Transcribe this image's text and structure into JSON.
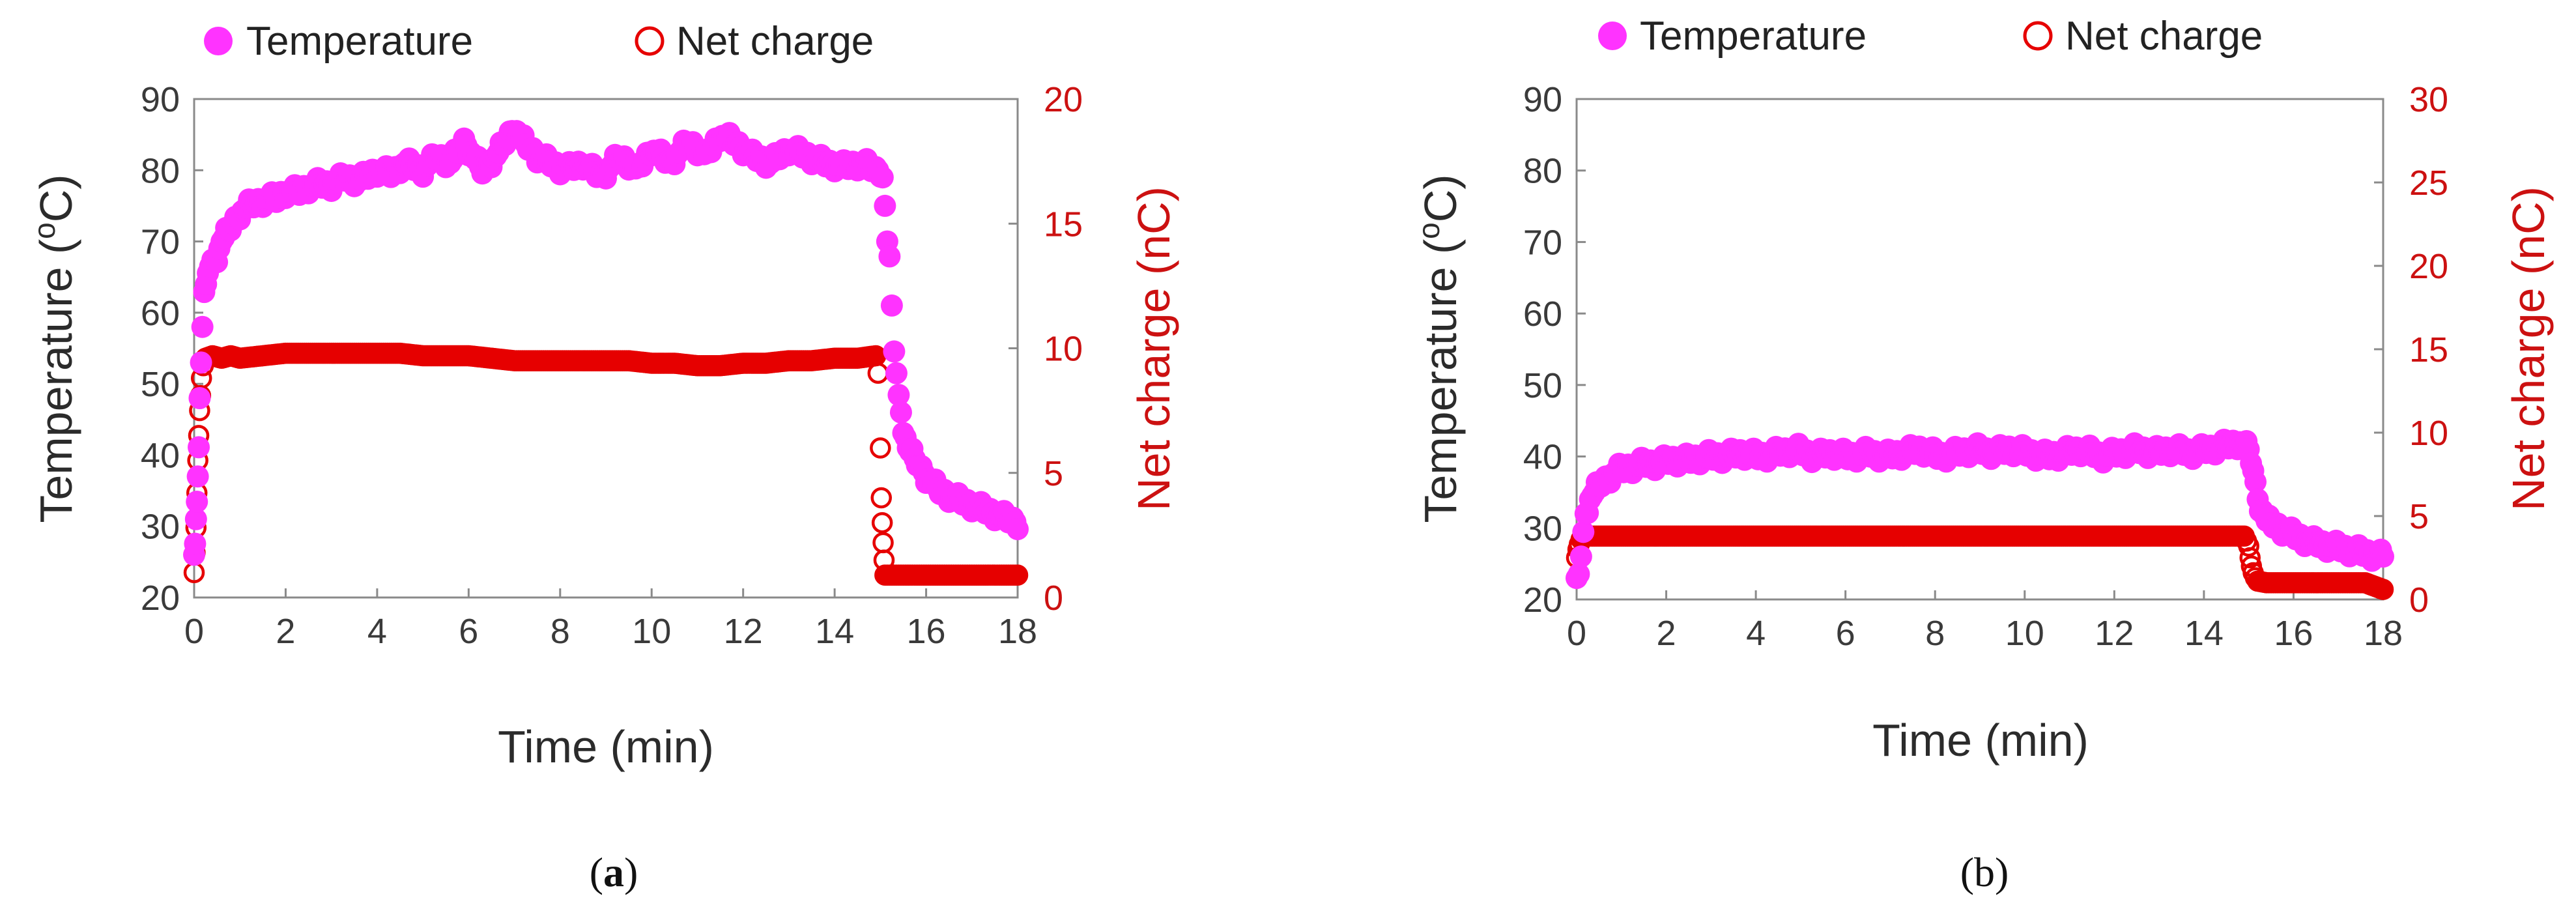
{
  "colors": {
    "temperature": "#ff33ff",
    "charge": "#e60000",
    "axis": "#8a8a8a"
  },
  "chart_data": [
    {
      "panel": "(a)",
      "panel_open": "(",
      "panel_letter": "a",
      "panel_close": ")",
      "type": "scatter",
      "xlabel": "Time (min)",
      "ylabel_left": "Temperature (",
      "ylabel_sup": "o",
      "ylabel_left_end": "C)",
      "ylabel_right": "Net charge (nC)",
      "legend": [
        "Temperature",
        "Net charge"
      ],
      "xlim": [
        0,
        18
      ],
      "ylim_left": [
        20,
        90
      ],
      "ylim_right": [
        0,
        20
      ],
      "xticks": [
        0,
        2,
        4,
        6,
        8,
        10,
        12,
        14,
        16,
        18
      ],
      "yticks_left": [
        20,
        30,
        40,
        50,
        60,
        70,
        80,
        90
      ],
      "yticks_right": [
        0,
        5,
        10,
        15,
        20
      ],
      "series": [
        {
          "name": "Temperature",
          "axis": "left",
          "marker": "filled-circle",
          "x": [
            0,
            0.02,
            0.04,
            0.06,
            0.08,
            0.1,
            0.12,
            0.15,
            0.18,
            0.22,
            0.26,
            0.3,
            0.4,
            0.5,
            0.6,
            0.7,
            0.8,
            0.9,
            1.0,
            1.2,
            1.4,
            1.6,
            1.8,
            2.0,
            2.3,
            2.6,
            3.0,
            3.3,
            3.6,
            4.0,
            4.3,
            4.6,
            5.0,
            5.3,
            5.6,
            5.9,
            6.0,
            6.3,
            6.6,
            6.9,
            7.0,
            7.2,
            7.5,
            7.8,
            8.1,
            8.5,
            8.9,
            9.3,
            9.7,
            10.0,
            10.4,
            10.8,
            11.2,
            11.5,
            11.8,
            12.2,
            12.6,
            13.0,
            13.4,
            13.8,
            14.2,
            14.6,
            14.9,
            15.0,
            15.05,
            15.1,
            15.15,
            15.2,
            15.3,
            15.4,
            15.5,
            15.6,
            15.8,
            16.0,
            16.3,
            16.6,
            17.0,
            17.4,
            17.8,
            18.0
          ],
          "y": [
            26,
            28,
            31,
            33,
            37,
            42,
            48,
            53,
            58,
            62,
            64,
            66,
            67,
            68,
            70,
            71,
            72,
            73,
            74,
            75,
            75.5,
            76,
            76,
            77,
            77,
            78,
            78,
            79,
            78.5,
            80,
            79.5,
            81,
            80,
            82,
            81,
            84,
            83,
            80,
            82,
            85,
            86,
            84,
            82,
            81,
            80,
            81,
            79,
            82,
            80,
            83,
            81,
            84,
            82,
            85,
            84,
            82,
            81,
            83,
            82,
            81,
            80.5,
            81,
            80,
            80,
            79,
            75,
            70,
            67,
            55,
            48,
            44,
            41,
            39,
            37,
            35,
            34,
            33,
            32,
            31,
            30.5
          ]
        },
        {
          "name": "Net charge",
          "axis": "right",
          "marker": "open-circle",
          "x": [
            0,
            0.02,
            0.04,
            0.06,
            0.08,
            0.1,
            0.12,
            0.14,
            0.16,
            0.2,
            0.25,
            0.4,
            0.6,
            0.8,
            1.0,
            1.5,
            2.0,
            2.5,
            3.0,
            3.5,
            4.0,
            4.5,
            5.0,
            5.5,
            6.0,
            6.5,
            7.0,
            7.5,
            8.0,
            8.5,
            9.0,
            9.5,
            10.0,
            10.5,
            11.0,
            11.5,
            12.0,
            12.5,
            13.0,
            13.5,
            14.0,
            14.5,
            14.9,
            14.95,
            15.0,
            15.02,
            15.04,
            15.06,
            15.08,
            15.1,
            15.2,
            15.4,
            15.6,
            15.8,
            16.0,
            16.3,
            16.6,
            17.0,
            17.3,
            17.6,
            17.8,
            18.0
          ],
          "y": [
            1.0,
            1.8,
            2.8,
            4.2,
            5.5,
            6.5,
            7.5,
            8.1,
            8.8,
            9.3,
            9.6,
            9.7,
            9.6,
            9.7,
            9.6,
            9.7,
            9.8,
            9.8,
            9.8,
            9.8,
            9.8,
            9.8,
            9.7,
            9.7,
            9.7,
            9.6,
            9.5,
            9.5,
            9.5,
            9.5,
            9.5,
            9.5,
            9.4,
            9.4,
            9.3,
            9.3,
            9.4,
            9.4,
            9.5,
            9.5,
            9.6,
            9.6,
            9.7,
            9.0,
            6.0,
            4.0,
            3.0,
            2.2,
            1.5,
            0.9,
            0.9,
            0.9,
            0.9,
            0.9,
            0.9,
            0.9,
            0.9,
            0.9,
            0.9,
            0.9,
            0.9,
            0.9
          ]
        }
      ]
    },
    {
      "panel": "(b)",
      "panel_text": "(b)",
      "type": "scatter",
      "xlabel": "Time (min)",
      "ylabel_left": "Temperature (",
      "ylabel_sup": "o",
      "ylabel_left_end": "C)",
      "ylabel_right": "Net charge (nC)",
      "legend": [
        "Temperature",
        "Net charge"
      ],
      "xlim": [
        0,
        18
      ],
      "ylim_left": [
        20,
        90
      ],
      "ylim_right": [
        0,
        30
      ],
      "xticks": [
        0,
        2,
        4,
        6,
        8,
        10,
        12,
        14,
        16,
        18
      ],
      "yticks_left": [
        20,
        30,
        40,
        50,
        60,
        70,
        80,
        90
      ],
      "yticks_right": [
        0,
        5,
        10,
        15,
        20,
        25,
        30
      ],
      "series": [
        {
          "name": "Temperature",
          "axis": "left",
          "marker": "filled-circle",
          "x": [
            0,
            0.05,
            0.1,
            0.15,
            0.2,
            0.3,
            0.4,
            0.5,
            0.7,
            0.9,
            1.2,
            1.5,
            1.8,
            2.1,
            2.5,
            2.9,
            3.3,
            3.7,
            4.1,
            4.5,
            4.9,
            5.3,
            5.7,
            6.1,
            6.5,
            6.9,
            7.3,
            7.7,
            8.1,
            8.5,
            8.9,
            9.3,
            9.7,
            10.1,
            10.5,
            10.9,
            11.3,
            11.7,
            12.1,
            12.5,
            12.9,
            13.3,
            13.7,
            14.1,
            14.5,
            14.8,
            15.0,
            15.1,
            15.2,
            15.4,
            15.7,
            16.0,
            16.4,
            16.8,
            17.2,
            17.6,
            18.0
          ],
          "y": [
            23,
            24,
            26,
            29,
            32,
            34,
            35,
            36,
            37,
            38,
            38.5,
            39,
            39,
            39.5,
            39.5,
            40,
            40,
            40.5,
            40,
            40.5,
            41,
            40,
            40.5,
            40,
            40.5,
            40,
            40.5,
            41,
            40,
            40.5,
            41,
            40.5,
            41,
            40.5,
            40,
            40.5,
            41,
            40,
            40.5,
            41,
            40.5,
            41,
            40.5,
            41,
            41.5,
            42,
            41,
            38,
            34,
            31,
            30,
            29,
            28,
            27.5,
            27,
            26.5,
            26
          ]
        },
        {
          "name": "Net charge",
          "axis": "right",
          "marker": "open-circle",
          "x": [
            0,
            0.03,
            0.06,
            0.1,
            0.15,
            0.2,
            0.5,
            1.0,
            1.5,
            2.0,
            2.5,
            3.0,
            3.5,
            4.0,
            4.5,
            5.0,
            5.5,
            6.0,
            6.5,
            7.0,
            7.5,
            8.0,
            8.5,
            9.0,
            9.5,
            10.0,
            10.5,
            11.0,
            11.5,
            12.0,
            12.5,
            13.0,
            13.5,
            14.0,
            14.5,
            14.9,
            15.0,
            15.03,
            15.06,
            15.1,
            15.15,
            15.2,
            15.4,
            15.7,
            16.0,
            16.3,
            16.6,
            17.0,
            17.3,
            17.6,
            18.0
          ],
          "y": [
            2.5,
            3.0,
            3.3,
            3.6,
            3.7,
            3.8,
            3.8,
            3.8,
            3.8,
            3.8,
            3.8,
            3.8,
            3.8,
            3.8,
            3.8,
            3.8,
            3.8,
            3.8,
            3.8,
            3.8,
            3.8,
            3.8,
            3.8,
            3.8,
            3.8,
            3.8,
            3.8,
            3.8,
            3.8,
            3.8,
            3.8,
            3.8,
            3.8,
            3.8,
            3.8,
            3.8,
            3.2,
            2.5,
            2.0,
            1.6,
            1.3,
            1.1,
            1.0,
            1.0,
            1.0,
            1.0,
            1.0,
            1.0,
            1.0,
            1.0,
            0.6
          ]
        }
      ]
    }
  ]
}
